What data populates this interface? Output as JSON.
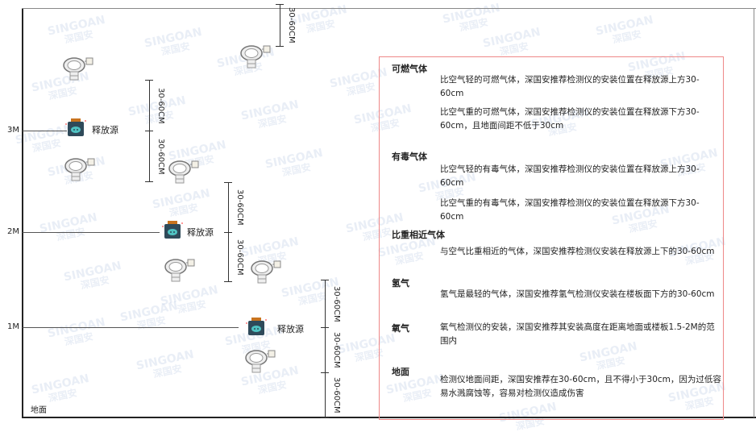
{
  "watermark": {
    "brand": "SINGOAN",
    "cn": "深国安"
  },
  "levels": {
    "m3": "3M",
    "m2": "2M",
    "m1": "1M",
    "ground": "地面"
  },
  "release_source_label": "释放源",
  "dimension_label": "30-60CM",
  "icons": {
    "detector": "gas-detector-icon",
    "source": "release-source-icon"
  },
  "colors": {
    "border": "#e88888",
    "source_body": "#2f4a5a",
    "source_cap": "#c8731e",
    "source_face": "#4fc3c3"
  },
  "legend": {
    "combustible": {
      "title": "可燃气体",
      "light": "比空气轻的可燃气体，深国安推荐检测仪的安装位置在释放源上方30-60cm",
      "heavy": "比空气重的可燃气体，深国安推荐检测仪的安装位置在释放源下方30-60cm，且地面间距不低于30cm"
    },
    "toxic": {
      "title": "有毒气体",
      "light": "比空气轻的有毒气体，深国安推荐检测仪的安装位置在释放源上方30-60cm",
      "heavy": "比空气重的有毒气体，深国安推荐检测仪的安装位置在释放源下方30-60cm"
    },
    "similar": {
      "title": "比重相近气体",
      "text": "与空气比重相近的气体，深国安推荐检测仪安装在释放源上下的30-60cm"
    },
    "hydrogen": {
      "title": "氢气",
      "text": "氢气是最轻的气体，深国安推荐氢气检测仪安装在楼板面下方的30-60cm"
    },
    "oxygen": {
      "title": "氧气",
      "text": "氧气检测仪的安装，深国安推荐其安装高度在距离地面或楼板1.5-2M的范围内"
    },
    "ground": {
      "title": "地面",
      "text": "检测仪地面间距，深国安推荐在30-60cm，且不得小于30cm，因为过低容易水溅腐蚀等，容易对检测仪造成伤害"
    }
  }
}
